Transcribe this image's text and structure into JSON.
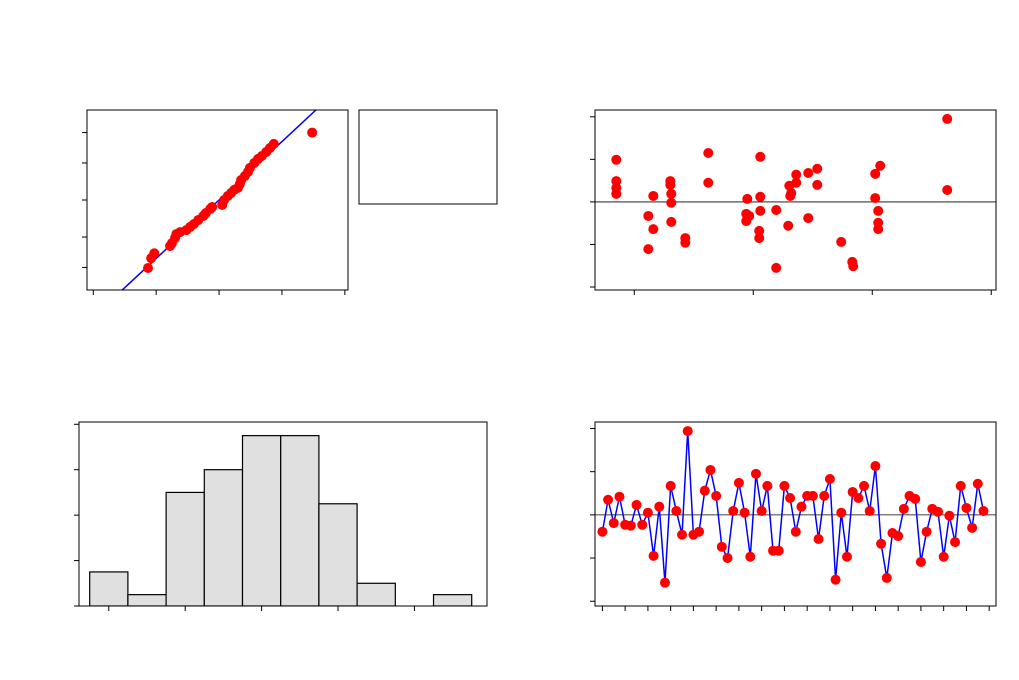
{
  "chart_data": [
    {
      "type": "probability",
      "x": [
        -1.13,
        -1.08,
        -1.03,
        -0.78,
        -0.75,
        -0.7,
        -0.68,
        -0.62,
        -0.52,
        -0.46,
        -0.4,
        -0.33,
        -0.25,
        -0.21,
        -0.14,
        -0.11,
        0.05,
        0.08,
        0.14,
        0.19,
        0.24,
        0.3,
        0.33,
        0.35,
        0.41,
        0.46,
        0.49,
        0.56,
        0.62,
        0.68,
        0.75,
        0.81,
        0.87,
        1.48
      ],
      "values": [
        -2.35,
        -2.01,
        -1.84,
        -1.59,
        -1.49,
        -1.31,
        -1.18,
        -1.11,
        -1.04,
        -0.93,
        -0.83,
        -0.69,
        -0.55,
        -0.45,
        -0.31,
        -0.24,
        -0.17,
        0,
        0.14,
        0.24,
        0.35,
        0.42,
        0.55,
        0.69,
        0.83,
        0.97,
        1.11,
        1.28,
        1.42,
        1.52,
        1.66,
        1.8,
        1.94,
        2.33
      ],
      "color": "#ff0000",
      "fit_line": {
        "x": [
          -1.54,
          1.54
        ],
        "y": [
          -3.11,
          3.11
        ],
        "color": "#0000ff"
      },
      "xlim": [
        -2.1,
        2.05
      ],
      "xticks": [
        -2,
        -1,
        0,
        1,
        2
      ],
      "ylim": [
        -3.11,
        3.11
      ],
      "yticks": [
        -2.33,
        -1.28,
        0,
        1.28,
        2.33
      ]
    },
    {
      "type": "scatter",
      "x": [
        8.49,
        8.49,
        8.49,
        8.49,
        11.18,
        11.6,
        11.6,
        11.18,
        13.03,
        13.03,
        13.11,
        13.11,
        13.11,
        14.29,
        14.29,
        16.22,
        16.22,
        19.5,
        19.41,
        19.41,
        19.66,
        20.59,
        20.59,
        20.59,
        20.5,
        20.5,
        21.93,
        21.93,
        22.94,
        23.03,
        23.11,
        23.19,
        23.61,
        23.61,
        24.62,
        24.62,
        25.38,
        25.38,
        27.39,
        28.32,
        28.4,
        30.25,
        30.25,
        30.5,
        30.5,
        30.5,
        30.67,
        36.3,
        36.3
      ],
      "values": [
        0.99,
        0.49,
        0.33,
        0.19,
        -0.33,
        0.14,
        -0.64,
        -1.11,
        0.4,
        0.49,
        0.19,
        -0.02,
        -0.47,
        -0.85,
        -0.96,
        1.15,
        0.45,
        0.07,
        -0.28,
        -0.45,
        -0.33,
        1.06,
        0.12,
        -0.21,
        -0.68,
        -0.85,
        -0.19,
        -1.55,
        -0.56,
        0.38,
        0.14,
        0.21,
        0.64,
        0.45,
        0.68,
        -0.38,
        0.78,
        0.4,
        -0.94,
        -1.41,
        -1.51,
        0.66,
        0.09,
        -0.21,
        -0.49,
        -0.64,
        0.85,
        1.95,
        0.28
      ],
      "color": "#ff0000",
      "hline": 0,
      "xlim": [
        6.7,
        40.4
      ],
      "xticks": [
        10,
        20,
        30,
        40
      ],
      "ylim": [
        -2.07,
        2.16
      ],
      "yticks": [
        -2,
        -1,
        0,
        1,
        2
      ]
    },
    {
      "type": "histogram",
      "bins": [
        -2.25,
        -1.75,
        -1.25,
        -0.75,
        -0.25,
        0.25,
        0.75,
        1.25,
        1.75,
        2.25,
        2.75
      ],
      "values": [
        3,
        1,
        10,
        12,
        15,
        15,
        9,
        2,
        0,
        1
      ],
      "color": "#e0e0e0",
      "xlim": [
        -2.39,
        2.95
      ],
      "xticks": [
        -2,
        -1,
        0,
        1,
        2
      ],
      "ylim": [
        0,
        16.2
      ],
      "yticks": [
        0,
        4,
        8,
        12,
        16
      ]
    },
    {
      "type": "line",
      "x": [
        1,
        2,
        3,
        4,
        5,
        6,
        7,
        8,
        9,
        10,
        11,
        12,
        13,
        14,
        15,
        16,
        17,
        18,
        19,
        20,
        21,
        22,
        23,
        24,
        25,
        26,
        27,
        28,
        29,
        30,
        31,
        32,
        33,
        34,
        35,
        36,
        37,
        38,
        39,
        40,
        41,
        42,
        43,
        44,
        45,
        46,
        47,
        48,
        49,
        50,
        51,
        52,
        53,
        54,
        55,
        56,
        57,
        58,
        59,
        60,
        61,
        62,
        63,
        64,
        65,
        66,
        67,
        68
      ],
      "values": [
        -0.39,
        0.35,
        -0.19,
        0.42,
        -0.23,
        -0.25,
        0.23,
        -0.23,
        0.05,
        -0.95,
        0.19,
        -1.57,
        0.67,
        0.09,
        -0.46,
        1.94,
        -0.46,
        -0.39,
        0.56,
        1.04,
        0.44,
        -0.74,
        -1.0,
        0.09,
        0.74,
        0.05,
        -0.97,
        0.95,
        0.09,
        0.67,
        -0.83,
        -0.83,
        0.67,
        0.39,
        -0.39,
        0.19,
        0.44,
        0.44,
        -0.56,
        0.44,
        0.83,
        -1.5,
        0.05,
        -0.97,
        0.53,
        0.39,
        0.67,
        0.09,
        1.13,
        -0.67,
        -1.46,
        -0.42,
        -0.49,
        0.14,
        0.44,
        0.37,
        -1.09,
        -0.39,
        0.14,
        0.07,
        -0.97,
        -0.02,
        -0.63,
        0.67,
        0.16,
        -0.3,
        0.72,
        0.09
      ],
      "color": "#ff0000",
      "line_color": "#0000ff",
      "hline": 0,
      "xlim": [
        -0.3,
        70.2
      ],
      "xticks": [
        1,
        5,
        9,
        13,
        17,
        21,
        25,
        29,
        33,
        37,
        41,
        45,
        49,
        53,
        57,
        61,
        65,
        69
      ],
      "ylim": [
        -2.11,
        2.15
      ],
      "yticks": [
        -2,
        -1,
        0,
        1,
        2
      ]
    }
  ]
}
